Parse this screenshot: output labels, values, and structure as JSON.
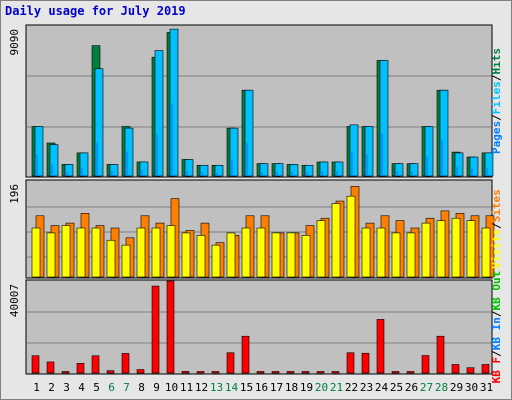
{
  "title": "Daily usage for July 2019",
  "colors": {
    "pages": "#0080ff",
    "files": "#00c0ff",
    "hits": "#008040",
    "sites": "#ff8000",
    "visits": "#ffff00",
    "kb_in": "#0080ff",
    "kb_out": "#00c000",
    "kb_f": "#ff0000",
    "separator": "#000000",
    "weekend_day": "#008040",
    "weekday_day": "#000000"
  },
  "chart_data": [
    {
      "type": "bar",
      "panel": "pages-files-hits",
      "ymax_label": "9090",
      "ylim": [
        0,
        9090
      ],
      "grid": true,
      "legend_label": [
        "Pages",
        "/",
        "Files",
        "/",
        "Hits"
      ],
      "legend_placement": "right, vertical",
      "categories": [
        "1",
        "2",
        "3",
        "4",
        "5",
        "6",
        "7",
        "8",
        "9",
        "10",
        "11",
        "12",
        "13",
        "14",
        "15",
        "16",
        "17",
        "18",
        "19",
        "20",
        "21",
        "22",
        "23",
        "24",
        "25",
        "26",
        "27",
        "28",
        "29",
        "30",
        "31"
      ],
      "series": [
        {
          "name": "Hits",
          "values": [
            3000,
            2000,
            700,
            1400,
            7900,
            700,
            3000,
            850,
            7200,
            8700,
            1000,
            650,
            650,
            2900,
            5200,
            750,
            750,
            700,
            650,
            850,
            850,
            3000,
            3000,
            7000,
            750,
            750,
            3000,
            5200,
            1450,
            1150,
            1400
          ]
        },
        {
          "name": "Files",
          "values": [
            3000,
            1900,
            700,
            1400,
            6500,
            700,
            2900,
            850,
            7600,
            8900,
            1000,
            650,
            650,
            2900,
            5200,
            750,
            750,
            700,
            650,
            850,
            850,
            3100,
            3000,
            7000,
            750,
            750,
            3000,
            5200,
            1400,
            1150,
            1400
          ]
        },
        {
          "name": "Pages",
          "values": [
            1300,
            700,
            250,
            500,
            2000,
            300,
            1500,
            350,
            2500,
            4400,
            300,
            250,
            200,
            1000,
            2000,
            250,
            250,
            250,
            250,
            300,
            300,
            1400,
            1300,
            2600,
            300,
            300,
            1200,
            2200,
            550,
            450,
            500
          ]
        }
      ]
    },
    {
      "type": "bar",
      "panel": "visits-sites",
      "ymax_label": "196",
      "ylim": [
        0,
        196
      ],
      "grid": true,
      "legend_label": [
        "Visits",
        "/",
        "Sites"
      ],
      "legend_placement": "right, vertical",
      "categories": [
        "1",
        "2",
        "3",
        "4",
        "5",
        "6",
        "7",
        "8",
        "9",
        "10",
        "11",
        "12",
        "13",
        "14",
        "15",
        "16",
        "17",
        "18",
        "19",
        "20",
        "21",
        "22",
        "23",
        "24",
        "25",
        "26",
        "27",
        "28",
        "29",
        "30",
        "31"
      ],
      "series": [
        {
          "name": "Visits",
          "values": [
            100,
            90,
            105,
            100,
            100,
            75,
            65,
            100,
            100,
            105,
            90,
            85,
            65,
            90,
            100,
            100,
            90,
            90,
            85,
            115,
            150,
            165,
            100,
            100,
            90,
            90,
            110,
            115,
            120,
            115,
            100
          ]
        },
        {
          "name": "Sites",
          "values": [
            125,
            105,
            110,
            130,
            105,
            100,
            80,
            125,
            110,
            160,
            95,
            110,
            70,
            85,
            125,
            125,
            90,
            90,
            105,
            120,
            155,
            185,
            110,
            125,
            115,
            100,
            120,
            135,
            130,
            125,
            125
          ]
        }
      ]
    },
    {
      "type": "bar",
      "panel": "kbytes",
      "ymax_label": "40007",
      "ylim": [
        0,
        40007
      ],
      "grid": true,
      "legend_label": [
        "KB F",
        "/",
        "KB In",
        "/",
        "KB Out"
      ],
      "legend_placement": "right, vertical",
      "categories": [
        "1",
        "2",
        "3",
        "4",
        "5",
        "6",
        "7",
        "8",
        "9",
        "10",
        "11",
        "12",
        "13",
        "14",
        "15",
        "16",
        "17",
        "18",
        "19",
        "20",
        "21",
        "22",
        "23",
        "24",
        "25",
        "26",
        "27",
        "28",
        "29",
        "30",
        "31"
      ],
      "series": [
        {
          "name": "KB F",
          "values": [
            7500,
            4800,
            300,
            4200,
            7500,
            1000,
            8500,
            1500,
            37800,
            41000,
            700,
            600,
            400,
            8800,
            16000,
            400,
            400,
            500,
            400,
            600,
            600,
            8800,
            8600,
            23300,
            400,
            400,
            7600,
            16000,
            3700,
            2300,
            3700
          ]
        }
      ]
    }
  ],
  "x_labels": {
    "days": [
      "1",
      "2",
      "3",
      "4",
      "5",
      "6",
      "7",
      "8",
      "9",
      "10",
      "11",
      "12",
      "13",
      "14",
      "15",
      "16",
      "17",
      "18",
      "19",
      "20",
      "21",
      "22",
      "23",
      "24",
      "25",
      "26",
      "27",
      "28",
      "29",
      "30",
      "31"
    ],
    "weekend": [
      6,
      7,
      13,
      14,
      20,
      21,
      27,
      28
    ]
  }
}
